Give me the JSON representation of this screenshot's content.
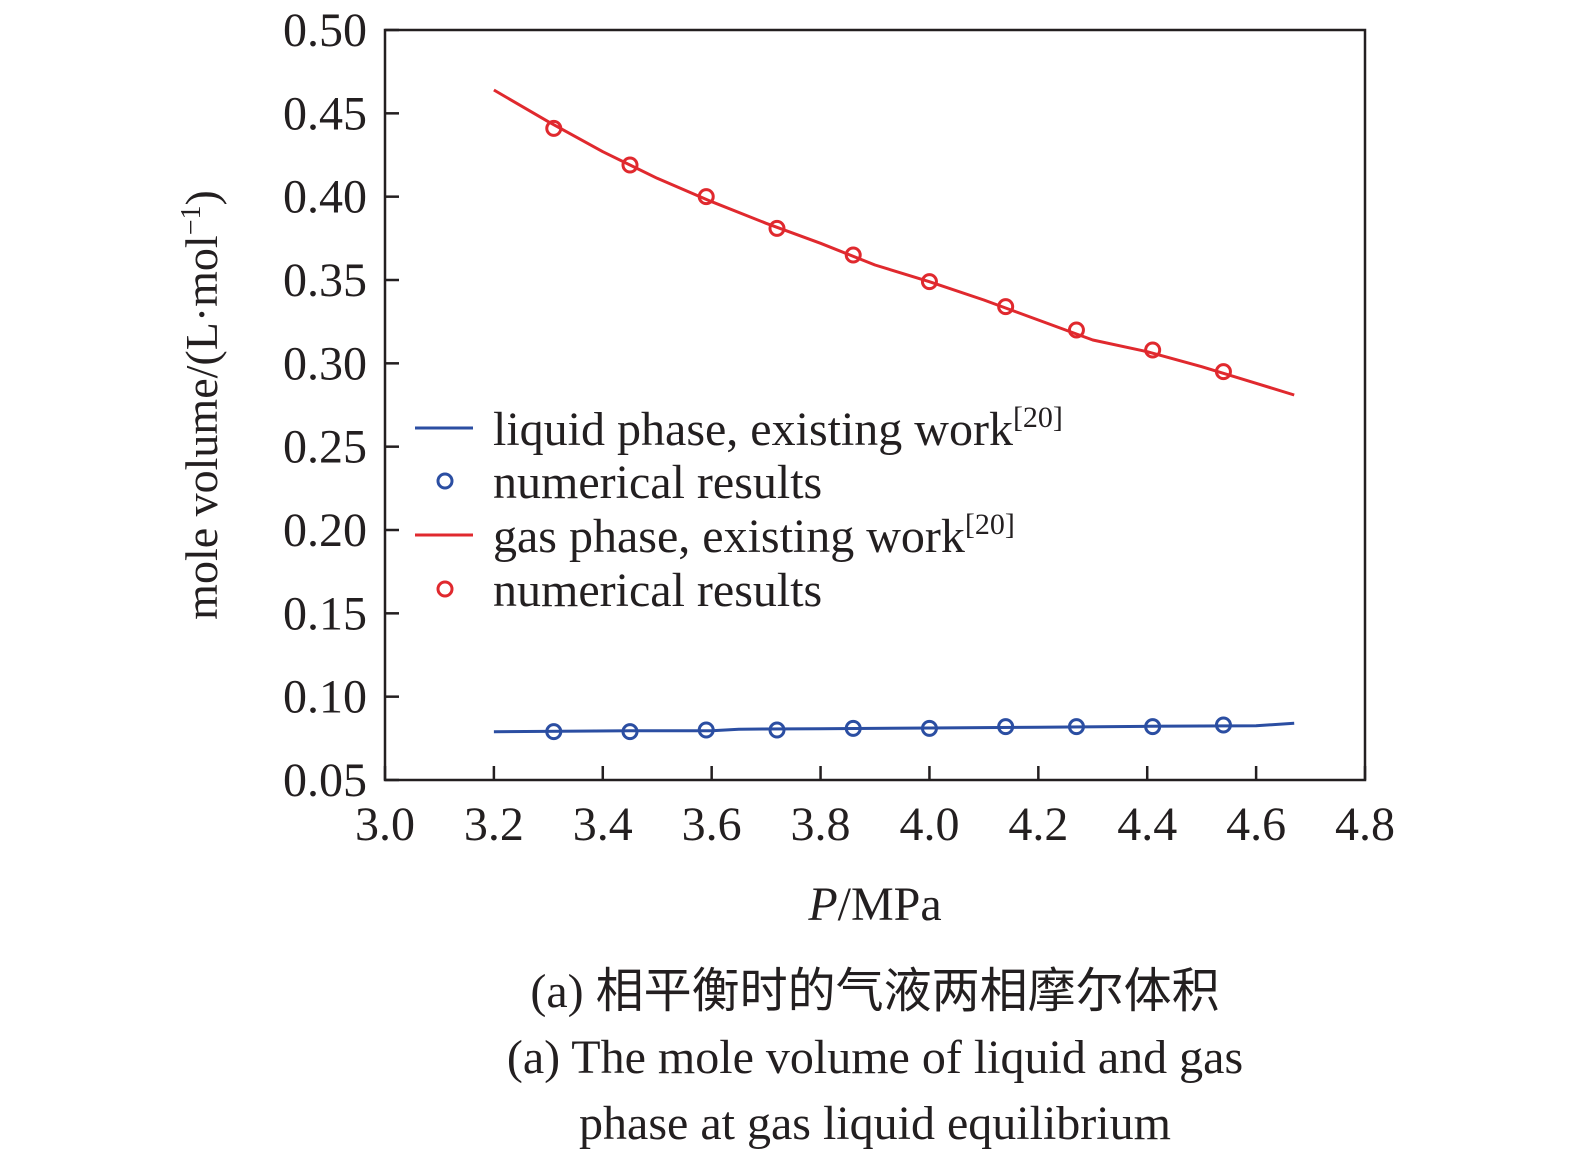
{
  "chart_data": {
    "type": "line",
    "xlabel_italic": "P",
    "xlabel_unit": "/MPa",
    "ylabel": "mole volume/(L·mol",
    "ylabel_sup": "−1",
    "ylabel_close": ")",
    "xlim": [
      3.0,
      4.8
    ],
    "ylim": [
      0.05,
      0.5
    ],
    "x_ticks": [
      3.0,
      3.2,
      3.4,
      3.6,
      3.8,
      4.0,
      4.2,
      4.4,
      4.6,
      4.8
    ],
    "x_tick_labels": [
      "3.0",
      "3.2",
      "3.4",
      "3.6",
      "3.8",
      "4.0",
      "4.2",
      "4.4",
      "4.6",
      "4.8"
    ],
    "y_ticks": [
      0.05,
      0.1,
      0.15,
      0.2,
      0.25,
      0.3,
      0.35,
      0.4,
      0.45,
      0.5
    ],
    "y_tick_labels": [
      "0.05",
      "0.10",
      "0.15",
      "0.20",
      "0.25",
      "0.30",
      "0.35",
      "0.40",
      "0.45",
      "0.50"
    ],
    "grid": false,
    "legend_position": "center-left",
    "series": [
      {
        "name": "liquid phase, existing work",
        "name_sup": "[20]",
        "kind": "line",
        "color": "#2b4ea2",
        "x": [
          3.2,
          3.45,
          3.6,
          3.65,
          3.8,
          4.0,
          4.2,
          4.4,
          4.6,
          4.67
        ],
        "y": [
          0.079,
          0.0795,
          0.0795,
          0.0805,
          0.0808,
          0.0812,
          0.0817,
          0.0822,
          0.0826,
          0.084
        ]
      },
      {
        "name": "numerical results",
        "kind": "scatter",
        "color": "#2b4ea2",
        "x": [
          3.31,
          3.45,
          3.59,
          3.72,
          3.86,
          4.0,
          4.14,
          4.27,
          4.41,
          4.54
        ],
        "y": [
          0.079,
          0.079,
          0.08,
          0.08,
          0.081,
          0.081,
          0.082,
          0.082,
          0.082,
          0.083
        ]
      },
      {
        "name": "gas phase, existing work",
        "name_sup": "[20]",
        "kind": "line",
        "color": "#e0292e",
        "x": [
          3.2,
          3.3,
          3.4,
          3.5,
          3.6,
          3.7,
          3.8,
          3.9,
          4.0,
          4.1,
          4.2,
          4.3,
          4.4,
          4.5,
          4.6,
          4.67
        ],
        "y": [
          0.464,
          0.445,
          0.427,
          0.411,
          0.397,
          0.384,
          0.372,
          0.359,
          0.349,
          0.338,
          0.326,
          0.314,
          0.307,
          0.298,
          0.288,
          0.281
        ]
      },
      {
        "name": "numerical results",
        "kind": "scatter",
        "color": "#e0292e",
        "x": [
          3.31,
          3.45,
          3.59,
          3.72,
          3.86,
          4.0,
          4.14,
          4.27,
          4.41,
          4.54
        ],
        "y": [
          0.441,
          0.419,
          0.4,
          0.381,
          0.365,
          0.349,
          0.334,
          0.32,
          0.308,
          0.295
        ]
      }
    ]
  },
  "caption": {
    "line1": "(a) 相平衡时的气液两相摩尔体积",
    "line2": "(a) The mole volume of liquid and gas",
    "line3": "phase at gas liquid equilibrium"
  }
}
